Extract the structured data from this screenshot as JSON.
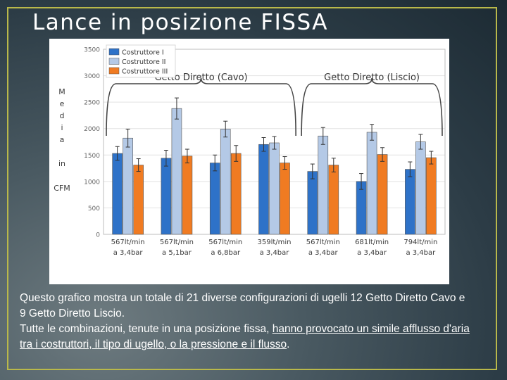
{
  "slide": {
    "title": "Lance in posizione FISSA",
    "caption_line1": "Questo grafico mostra un totale di 21 diverse configurazioni di ugelli 12 Getto Diretto Cavo e 9 Getto Diretto Liscio.",
    "caption_line2_start": "Tutte le combinazioni, tenute in una posizione fissa, ",
    "caption_line2_underlined": "hanno provocato un simile afflusso d'aria tra i costruttori, il tipo di ugello, o la pressione e il flusso",
    "caption_line2_end": "."
  },
  "chart_data": {
    "type": "bar",
    "ylabel_letters": [
      "M",
      "e",
      "d",
      "i",
      "a",
      "",
      "in",
      "",
      "CFM"
    ],
    "ylim": [
      0,
      3500
    ],
    "yticks": [
      0,
      500,
      1000,
      1500,
      2000,
      2500,
      3000,
      3500
    ],
    "grid": true,
    "legend_position": "top-left",
    "categories": [
      [
        "567lt/min",
        "a 3,4bar"
      ],
      [
        "567lt/min",
        "a 5,1bar"
      ],
      [
        "567lt/min",
        "a 6,8bar"
      ],
      [
        "359lt/min",
        "a 3,4bar"
      ],
      [
        "567lt/min",
        "a 3,4bar"
      ],
      [
        "681lt/min",
        "a 3,4bar"
      ],
      [
        "794lt/min",
        "a 3,4bar"
      ]
    ],
    "series": [
      {
        "name": "Costruttore I",
        "color": "#2e72c8",
        "values": [
          1530,
          1440,
          1350,
          1700,
          1190,
          1000,
          1230
        ],
        "err": [
          130,
          150,
          150,
          130,
          140,
          150,
          140
        ]
      },
      {
        "name": "Costruttore II",
        "color": "#b4c9e6",
        "values": [
          1820,
          2380,
          1990,
          1730,
          1860,
          1930,
          1750
        ],
        "err": [
          170,
          200,
          150,
          120,
          160,
          150,
          140
        ]
      },
      {
        "name": "Costruttore III",
        "color": "#f07b22",
        "values": [
          1310,
          1480,
          1530,
          1350,
          1310,
          1510,
          1450
        ],
        "err": [
          120,
          130,
          150,
          120,
          130,
          130,
          120
        ]
      }
    ],
    "groups": [
      {
        "label": "Getto Diretto (Cavo)",
        "from": 0,
        "to": 3
      },
      {
        "label": "Getto Diretto (Liscio)",
        "from": 4,
        "to": 6
      }
    ]
  }
}
